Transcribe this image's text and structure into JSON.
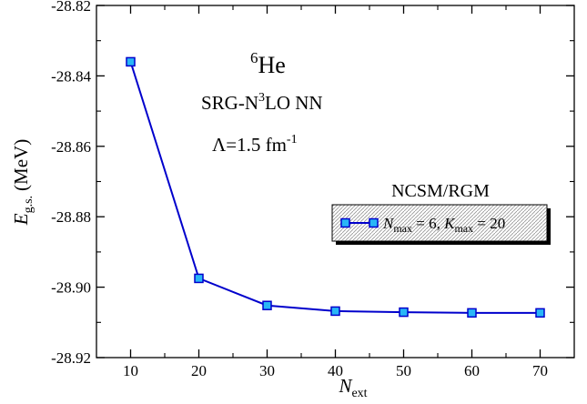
{
  "chart_data": {
    "type": "line",
    "xlabel": {
      "main": "N",
      "sub": "ext"
    },
    "ylabel": {
      "main": "E",
      "sub": "g.s.",
      "unit": "(MeV)"
    },
    "xlim": [
      5,
      75
    ],
    "ylim": [
      -28.92,
      -28.82
    ],
    "x_ticks": [
      10,
      20,
      30,
      40,
      50,
      60,
      70
    ],
    "x_tick_labels": [
      "10",
      "20",
      "30",
      "40",
      "50",
      "60",
      "70"
    ],
    "y_ticks": [
      -28.82,
      -28.84,
      -28.86,
      -28.88,
      -28.9,
      -28.92
    ],
    "y_tick_labels": [
      "-28.82",
      "-28.84",
      "-28.86",
      "-28.88",
      "-28.90",
      "-28.92"
    ],
    "grid": false,
    "annotations": {
      "nucleus": {
        "sup": "6",
        "text": "He"
      },
      "interaction": {
        "pre": "SRG-N",
        "sup": "3",
        "post": "LO NN"
      },
      "cutoff": {
        "pre": "Λ=1.5 fm",
        "sup": "-1"
      },
      "method": "NCSM/RGM"
    },
    "legend_placement": "right",
    "series": [
      {
        "legend": {
          "n_main": "N",
          "n_sub": "max",
          "n_val": " = 6, ",
          "k_main": "K",
          "k_sub": "max",
          "k_val": " = 20"
        },
        "color": "#0000cc",
        "marker_fill": "#29b6f6",
        "x": [
          10,
          20,
          30,
          40,
          50,
          60,
          70
        ],
        "y": [
          -28.836,
          -28.8975,
          -28.9052,
          -28.9068,
          -28.9071,
          -28.9073,
          -28.9073
        ]
      }
    ]
  }
}
